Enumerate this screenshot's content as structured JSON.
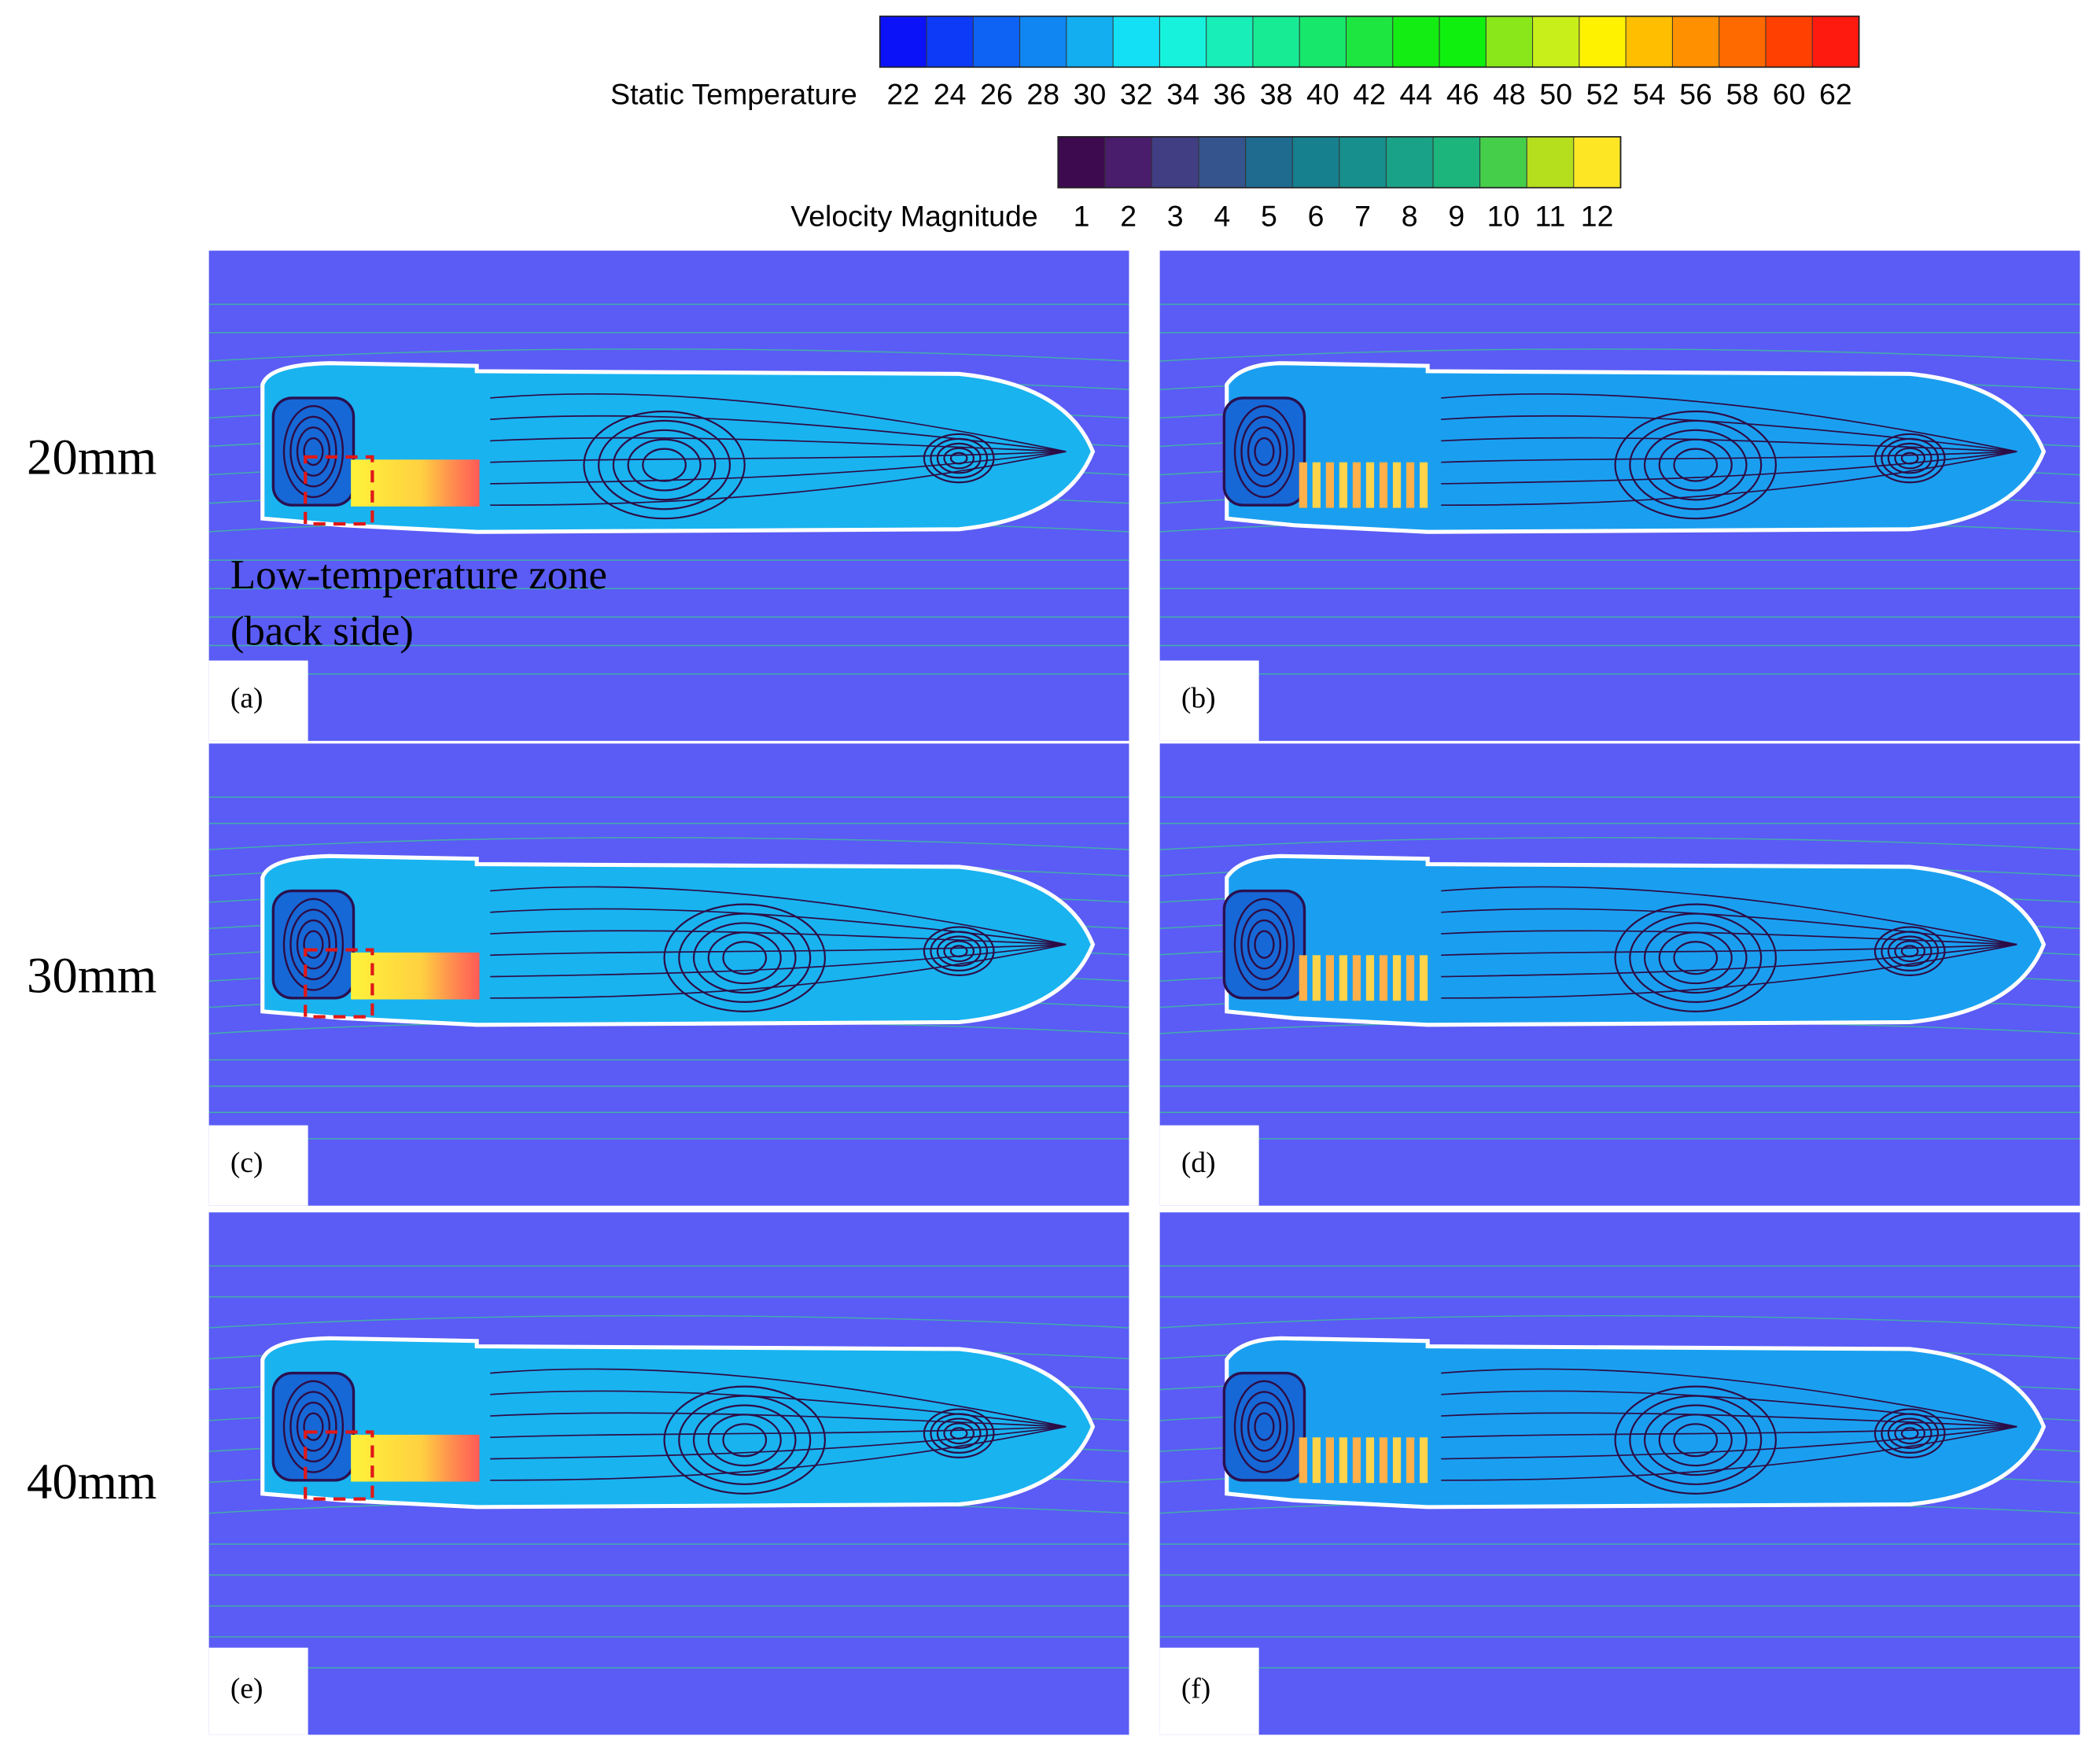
{
  "colorbars": [
    {
      "title": "Static Temperature",
      "ticks": [
        22,
        24,
        26,
        28,
        30,
        32,
        34,
        36,
        38,
        40,
        42,
        44,
        46,
        48,
        50,
        52,
        54,
        56,
        58,
        60,
        62
      ],
      "colors": [
        "#0b12f7",
        "#0c3af7",
        "#0e62f4",
        "#0f86f2",
        "#12aef0",
        "#14e0f5",
        "#16f2dc",
        "#18eeb8",
        "#17eb94",
        "#17e86c",
        "#1ee640",
        "#14ed14",
        "#10f00e",
        "#8ae81a",
        "#c9ef1a",
        "#fff200",
        "#ffbe00",
        "#ff9000",
        "#ff6a00",
        "#ff4000",
        "#ff1a10"
      ]
    },
    {
      "title": "Velocity Magnitude",
      "ticks": [
        1,
        2,
        3,
        4,
        5,
        6,
        7,
        8,
        9,
        10,
        11,
        12
      ],
      "colors": [
        "#3d0a4f",
        "#4a1c6c",
        "#413e83",
        "#35548d",
        "#1e6b8f",
        "#17808e",
        "#178f8c",
        "#1aa288",
        "#1cb57c",
        "#45ce4a",
        "#b5de1d",
        "#fde725"
      ]
    }
  ],
  "row_labels": [
    "20mm",
    "30mm",
    "40mm"
  ],
  "panels": [
    {
      "label": "(a)"
    },
    {
      "label": "(b)"
    },
    {
      "label": "(c)"
    },
    {
      "label": "(d)"
    },
    {
      "label": "(e)"
    },
    {
      "label": "(f)"
    }
  ],
  "annotation": {
    "lines": [
      "Low-temperature zone",
      "(back side)"
    ]
  }
}
